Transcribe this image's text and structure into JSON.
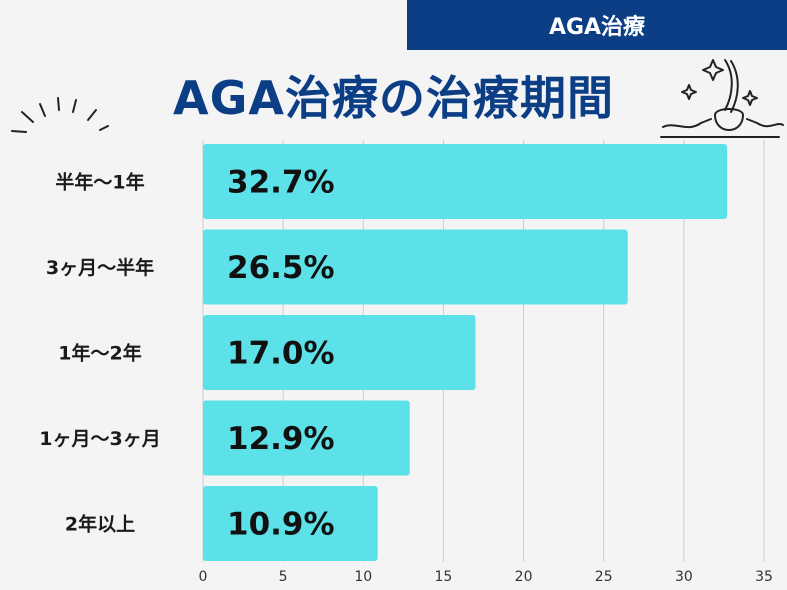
{
  "header": {
    "tag": "AGA治療",
    "title": "AGA治療の治療期間"
  },
  "colors": {
    "accent": "#0b3e85",
    "bar": "#5de1e8",
    "grid": "#cccccc",
    "background": "#f4f4f4"
  },
  "icons": [
    "sparkle-lines-icon",
    "hair-follicle-icon"
  ],
  "chart_data": {
    "type": "bar",
    "orientation": "horizontal",
    "title": "AGA治療の治療期間",
    "categories": [
      "半年〜1年",
      "3ヶ月〜半年",
      "1年〜2年",
      "1ヶ月〜3ヶ月",
      "2年以上"
    ],
    "values": [
      32.7,
      26.5,
      17.0,
      12.9,
      10.9
    ],
    "value_labels": [
      "32.7%",
      "26.5%",
      "17.0%",
      "12.9%",
      "10.9%"
    ],
    "xlim": [
      0,
      35
    ],
    "xticks": [
      0,
      5,
      10,
      15,
      20,
      25,
      30,
      35
    ],
    "xlabel": "",
    "ylabel": "",
    "grid": true
  }
}
